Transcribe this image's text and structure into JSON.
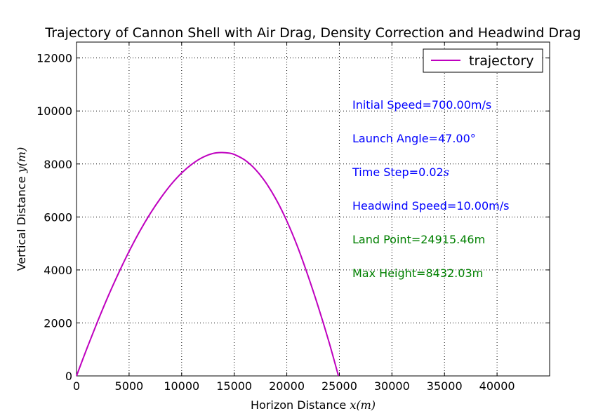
{
  "chart_data": {
    "type": "line",
    "title": "Trajectory of Cannon Shell with Air Drag, Density Correction and Headwind Drag",
    "xlabel_text": "Horizon Distance ",
    "xlabel_math": "x(m)",
    "ylabel_text": "Vertical Distance ",
    "ylabel_math": "y(m)",
    "xlim": [
      0,
      45000
    ],
    "ylim": [
      0,
      12600
    ],
    "x_ticks": [
      0,
      5000,
      10000,
      15000,
      20000,
      25000,
      30000,
      35000,
      40000
    ],
    "y_ticks": [
      0,
      2000,
      4000,
      6000,
      8000,
      10000,
      12000
    ],
    "grid": true,
    "legend": {
      "position": "top-right",
      "entries": [
        "trajectory"
      ]
    },
    "series": [
      {
        "name": "trajectory",
        "color": "#bf00bf",
        "x": [
          0,
          1000,
          2000,
          3000,
          4000,
          5000,
          6000,
          7000,
          8000,
          9000,
          10000,
          11000,
          12000,
          13000,
          13800,
          14500,
          15000,
          16000,
          17000,
          18000,
          19000,
          20000,
          21000,
          22000,
          23000,
          24000,
          24915.46
        ],
        "y": [
          0,
          1050,
          2050,
          3000,
          3880,
          4700,
          5450,
          6120,
          6710,
          7230,
          7660,
          8000,
          8250,
          8400,
          8432.03,
          8410,
          8360,
          8150,
          7800,
          7300,
          6650,
          5850,
          4900,
          3800,
          2600,
          1300,
          0
        ]
      }
    ],
    "annotations": [
      {
        "text": "Initial Speed=700.00m/s",
        "color": "#0000ff"
      },
      {
        "text": "Launch Angle=47.00°",
        "color": "#0000ff"
      },
      {
        "text": "Time Step=0.02",
        "math": "s",
        "color": "#0000ff"
      },
      {
        "text": "Headwind Speed=10.00m/s",
        "color": "#0000ff"
      },
      {
        "text": "Land Point=24915.46m",
        "color": "#008000"
      },
      {
        "text": "Max Height=8432.03m",
        "color": "#008000"
      }
    ]
  }
}
